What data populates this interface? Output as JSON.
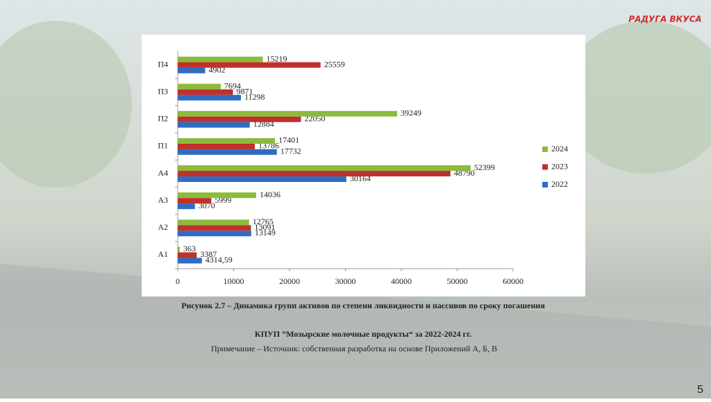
{
  "chart_data": {
    "type": "bar",
    "orientation": "horizontal",
    "categories": [
      "А1",
      "А2",
      "А3",
      "А4",
      "П1",
      "П2",
      "П3",
      "П4"
    ],
    "series": [
      {
        "name": "2022",
        "color": "#2f6cc2",
        "values": [
          4314.59,
          13149,
          3070,
          30164,
          17732,
          12884,
          11298,
          4902
        ],
        "value_labels": [
          "4314,59",
          "13149",
          "3070",
          "30164",
          "17732",
          "12884",
          "11298",
          "4902"
        ]
      },
      {
        "name": "2023",
        "color": "#c0302c",
        "values": [
          3387,
          13091,
          5999,
          48790,
          13786,
          22050,
          9871,
          25559
        ]
      },
      {
        "name": "2024",
        "color": "#8cbb3c",
        "values": [
          363,
          12765,
          14036,
          52399,
          17401,
          39249,
          7694,
          15219
        ]
      }
    ],
    "xlim": [
      0,
      60000
    ],
    "xticks": [
      0,
      10000,
      20000,
      30000,
      40000,
      50000,
      60000
    ],
    "grid": false,
    "legend": "right"
  },
  "caption": {
    "line1": "Рисунок 2.7 – Динамика групп активов по степени ликвидности и пассивов по сроку погашения",
    "line2": "КПУП ”Мозырские молочные продукты“ за 2022-2024 гг.",
    "note": "Примечание – Источник: собственная разработка на основе Приложений А, Б, В"
  },
  "logo": "РАДУГА ВКУСА",
  "page_number": "5"
}
